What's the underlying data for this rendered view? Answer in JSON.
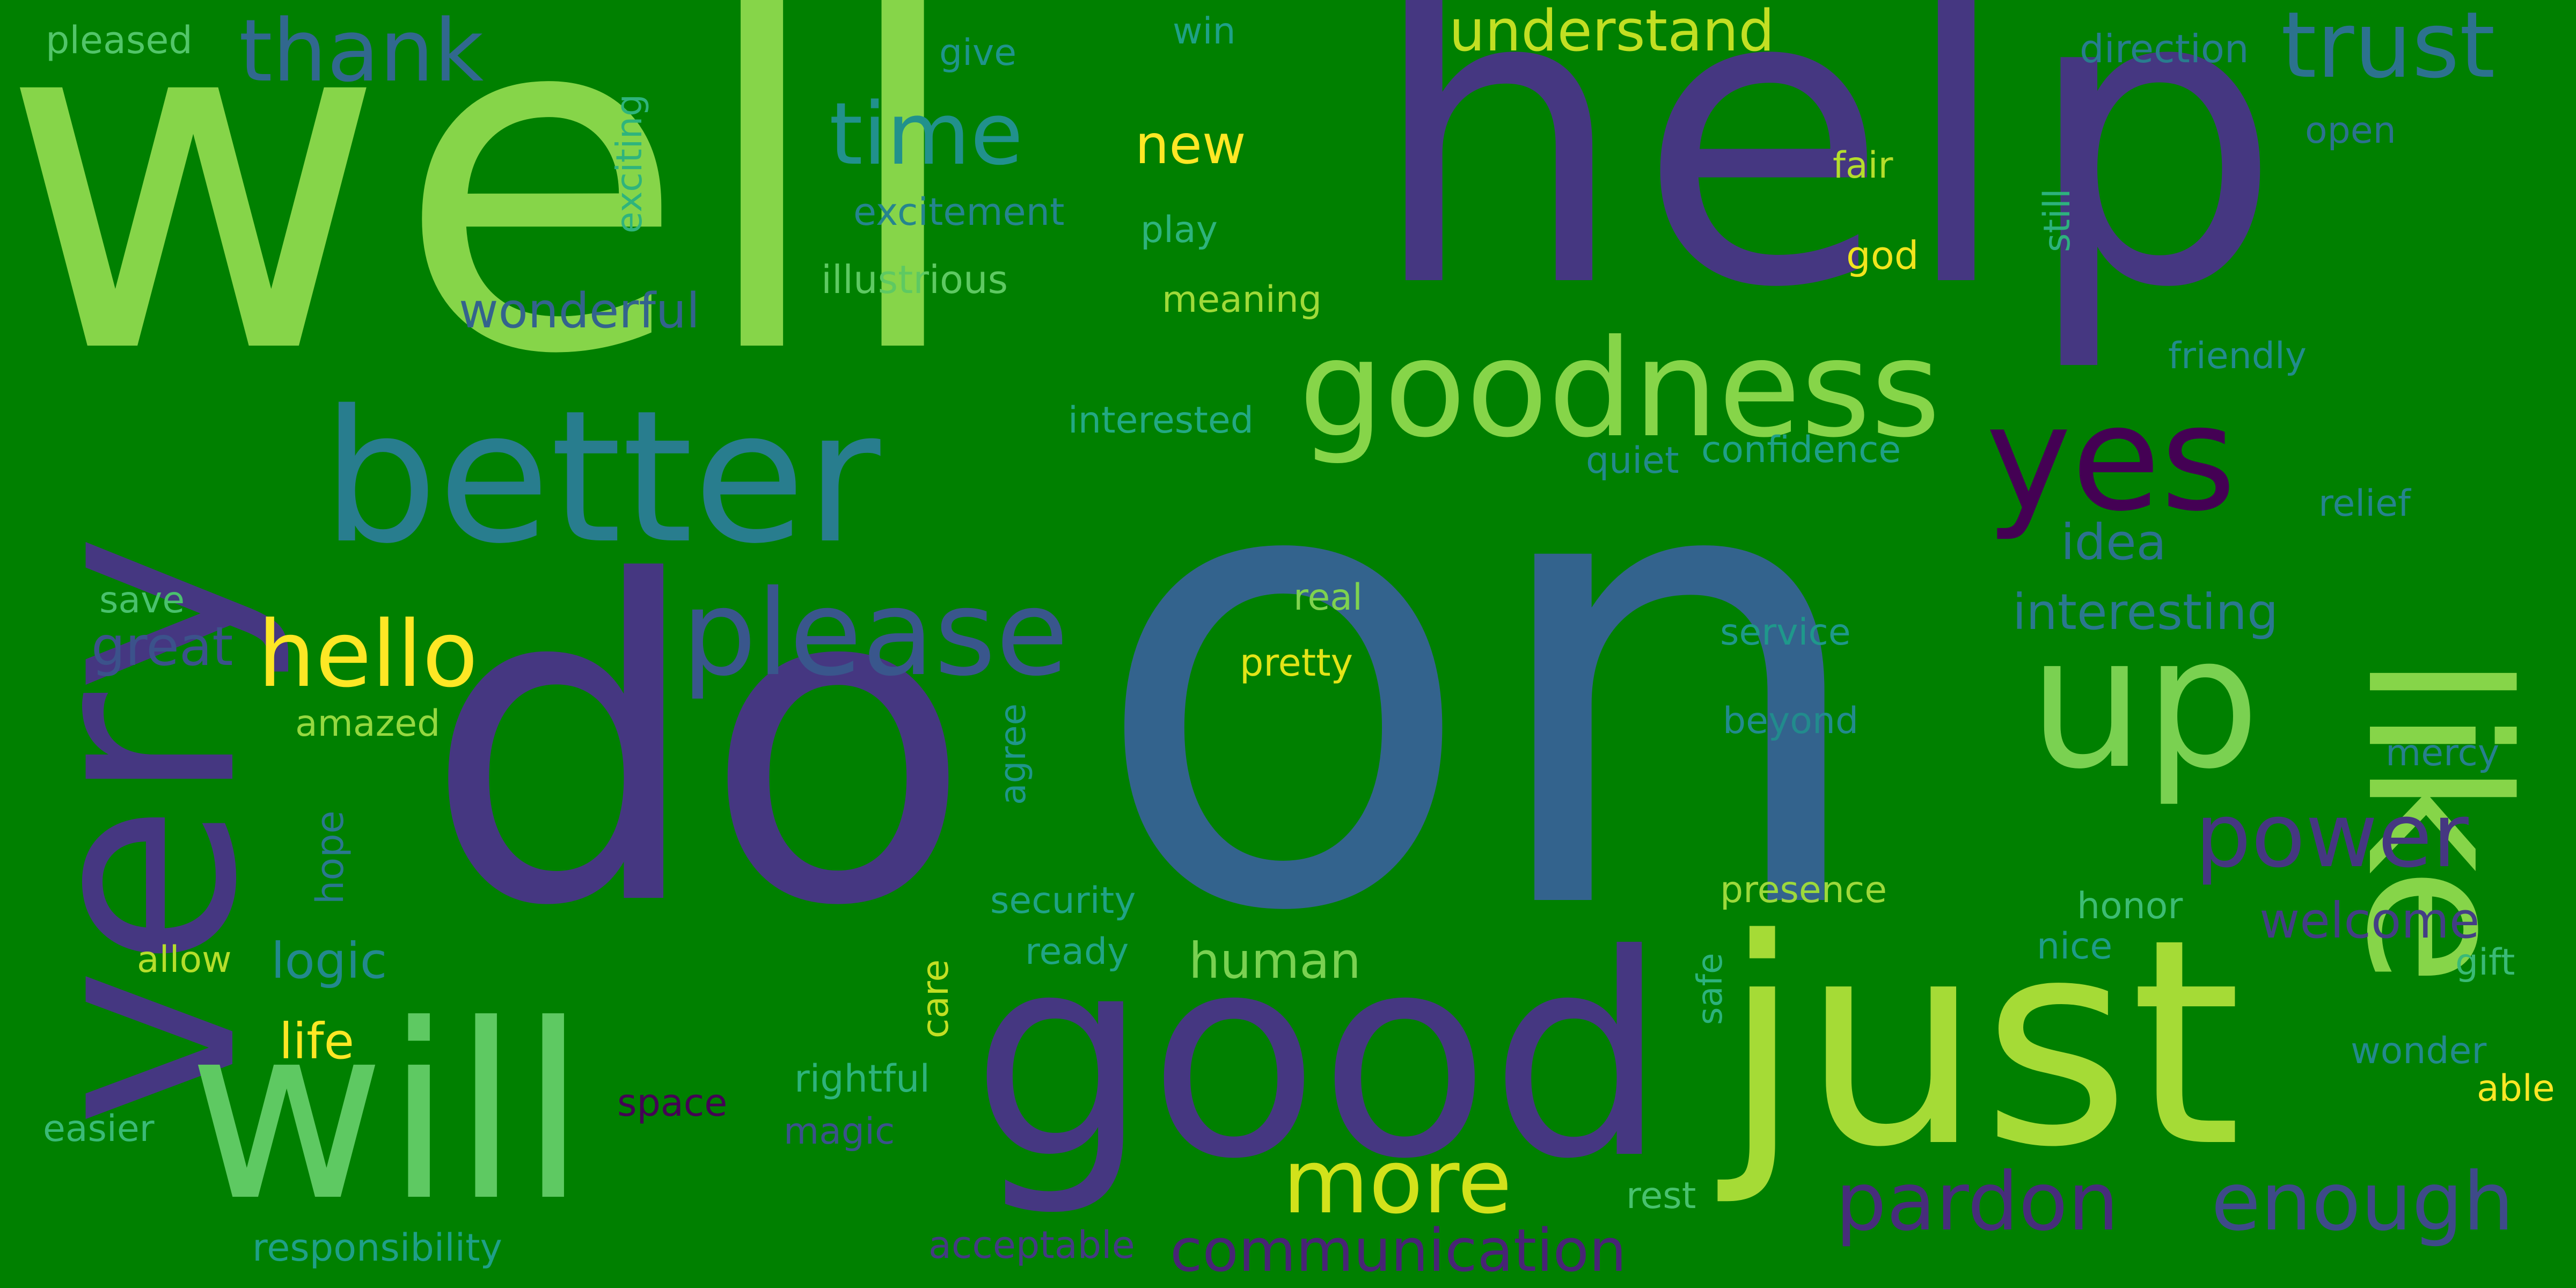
{
  "background_color": "#008000",
  "words": [
    {
      "text": "on",
      "color": "#33638d"
    },
    {
      "text": "well",
      "color": "#86d549"
    },
    {
      "text": "help",
      "color": "#453781"
    },
    {
      "text": "do",
      "color": "#453781"
    },
    {
      "text": "very",
      "color": "#453781"
    },
    {
      "text": "good",
      "color": "#453781"
    },
    {
      "text": "just",
      "color": "#a5db36"
    },
    {
      "text": "will",
      "color": "#5ec962"
    },
    {
      "text": "like",
      "color": "#86d549"
    },
    {
      "text": "better",
      "color": "#287d8e"
    },
    {
      "text": "goodness",
      "color": "#86d549"
    },
    {
      "text": "yes",
      "color": "#440154"
    },
    {
      "text": "up",
      "color": "#7ad151"
    },
    {
      "text": "please",
      "color": "#39568c"
    },
    {
      "text": "trust",
      "color": "#2c728e"
    },
    {
      "text": "thank",
      "color": "#31688e"
    },
    {
      "text": "time",
      "color": "#21918c"
    },
    {
      "text": "hello",
      "color": "#fde725"
    },
    {
      "text": "power",
      "color": "#453781"
    },
    {
      "text": "more",
      "color": "#d2e21b"
    },
    {
      "text": "pardon",
      "color": "#472d7b"
    },
    {
      "text": "enough",
      "color": "#3e4a89"
    },
    {
      "text": "understand",
      "color": "#c2df23"
    },
    {
      "text": "communication",
      "color": "#482475"
    },
    {
      "text": "new",
      "color": "#fde725"
    },
    {
      "text": "wonderful",
      "color": "#33638d"
    },
    {
      "text": "great",
      "color": "#3b528b"
    },
    {
      "text": "illustrious",
      "color": "#5ec962"
    },
    {
      "text": "excitement",
      "color": "#25858e"
    },
    {
      "text": "interesting",
      "color": "#2a788e"
    },
    {
      "text": "idea",
      "color": "#2c728e"
    },
    {
      "text": "logic",
      "color": "#23898e"
    },
    {
      "text": "human",
      "color": "#7ad151"
    },
    {
      "text": "welcome",
      "color": "#433e85"
    },
    {
      "text": "life",
      "color": "#fde725"
    },
    {
      "text": "pleased",
      "color": "#52c569"
    },
    {
      "text": "exciting",
      "color": "#2fb47c"
    },
    {
      "text": "give",
      "color": "#1f948c"
    },
    {
      "text": "win",
      "color": "#1fa187"
    },
    {
      "text": "direction",
      "color": "#287d8e"
    },
    {
      "text": "open",
      "color": "#2c728e"
    },
    {
      "text": "still",
      "color": "#2db27d"
    },
    {
      "text": "fair",
      "color": "#b5de2b"
    },
    {
      "text": "god",
      "color": "#f1e51d"
    },
    {
      "text": "play",
      "color": "#2eb37c"
    },
    {
      "text": "meaning",
      "color": "#a0da39"
    },
    {
      "text": "friendly",
      "color": "#228c8d"
    },
    {
      "text": "interested",
      "color": "#23a983"
    },
    {
      "text": "confidence",
      "color": "#1fa088"
    },
    {
      "text": "quiet",
      "color": "#238a8d"
    },
    {
      "text": "relief",
      "color": "#25848e"
    },
    {
      "text": "save",
      "color": "#4ac16d"
    },
    {
      "text": "amazed",
      "color": "#95d840"
    },
    {
      "text": "real",
      "color": "#7fd34e"
    },
    {
      "text": "pretty",
      "color": "#e2e418"
    },
    {
      "text": "service",
      "color": "#1f988b"
    },
    {
      "text": "beyond",
      "color": "#228b8d"
    },
    {
      "text": "mercy",
      "color": "#27808e"
    },
    {
      "text": "agree",
      "color": "#1f968b"
    },
    {
      "text": "hope",
      "color": "#2a788e"
    },
    {
      "text": "security",
      "color": "#20a386"
    },
    {
      "text": "presence",
      "color": "#9dd93b"
    },
    {
      "text": "honor",
      "color": "#3dbc74"
    },
    {
      "text": "nice",
      "color": "#1e9c89"
    },
    {
      "text": "gift",
      "color": "#3aba76"
    },
    {
      "text": "allow",
      "color": "#b5de2b"
    },
    {
      "text": "ready",
      "color": "#21a585"
    },
    {
      "text": "care",
      "color": "#c2df23"
    },
    {
      "text": "safe",
      "color": "#2db27d"
    },
    {
      "text": "wonder",
      "color": "#238a8d"
    },
    {
      "text": "able",
      "color": "#fde725"
    },
    {
      "text": "rightful",
      "color": "#2eb37c"
    },
    {
      "text": "easier",
      "color": "#3aba76"
    },
    {
      "text": "space",
      "color": "#440154"
    },
    {
      "text": "magic",
      "color": "#3b528b"
    },
    {
      "text": "rest",
      "color": "#48c16e"
    },
    {
      "text": "responsibility",
      "color": "#1fa088"
    },
    {
      "text": "acceptable",
      "color": "#443a83"
    }
  ]
}
